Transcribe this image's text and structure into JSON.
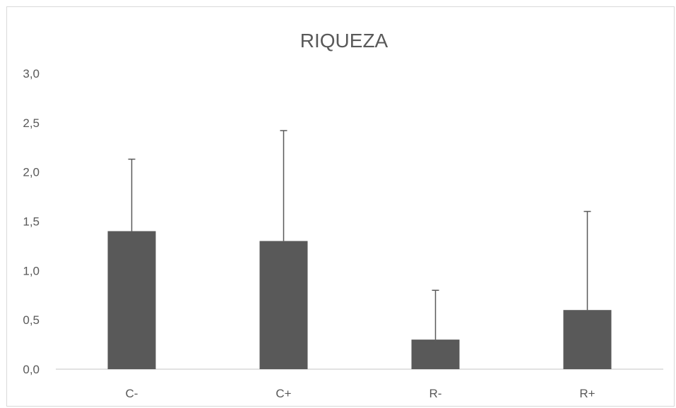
{
  "chart_data": {
    "type": "bar",
    "title": "RIQUEZA",
    "xlabel": "",
    "ylabel": "",
    "categories": [
      "C-",
      "C+",
      "R-",
      "R+"
    ],
    "values": [
      1.4,
      1.3,
      0.3,
      0.6
    ],
    "error_upper": [
      0.73,
      1.12,
      0.5,
      1.0
    ],
    "ylim": [
      0,
      3
    ],
    "yticks": [
      "0,0",
      "0,5",
      "1,0",
      "1,5",
      "2,0",
      "2,5",
      "3,0"
    ],
    "grid": false,
    "legend": "none",
    "bar_color": "#595959",
    "error_color": "#595959"
  }
}
